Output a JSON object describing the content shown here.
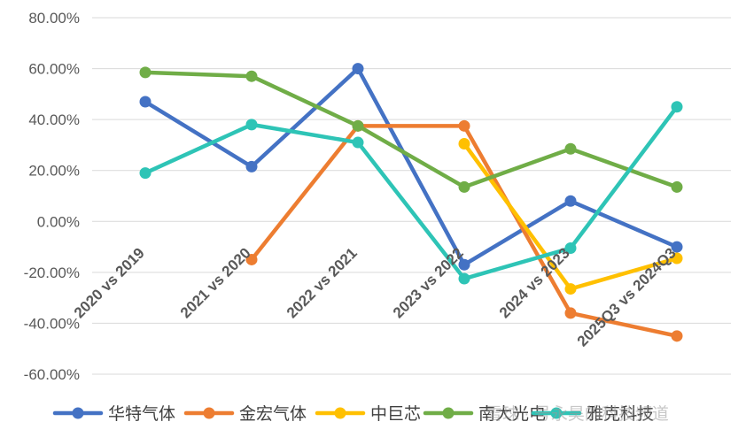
{
  "chart_data": {
    "type": "line",
    "title": "",
    "xlabel": "",
    "ylabel": "",
    "categories": [
      "2020 vs 2019",
      "2021 vs 2020",
      "2022 vs 2021",
      "2023 vs 2022",
      "2024 vs 2023",
      "2025Q3 vs 2024Q3"
    ],
    "y_ticks": [
      "80.00%",
      "60.00%",
      "40.00%",
      "20.00%",
      "0.00%",
      "-20.00%",
      "-40.00%",
      "-60.00%"
    ],
    "ylim": [
      -60,
      80
    ],
    "y_unit": "%",
    "grid": true,
    "legend_position": "bottom",
    "series": [
      {
        "name": "华特气体",
        "color": "#4472C4",
        "values": [
          47,
          21.5,
          60,
          -17,
          8,
          -10
        ]
      },
      {
        "name": "金宏气体",
        "color": "#ED7D31",
        "values": [
          null,
          -15,
          37.5,
          37.5,
          -36,
          -45
        ]
      },
      {
        "name": "中巨芯",
        "color": "#FFC000",
        "values": [
          null,
          null,
          null,
          30.5,
          -26.5,
          -14.5
        ]
      },
      {
        "name": "南大光电",
        "color": "#70AD47",
        "values": [
          58.5,
          57,
          37.5,
          13.5,
          28.5,
          13.5
        ]
      },
      {
        "name": "雅克科技",
        "color": "#2EC4B6",
        "values": [
          19,
          38,
          31,
          -22.5,
          -10.5,
          45
        ]
      }
    ]
  },
  "watermark": {
    "text": "雪球 · 号永昊的科技频道"
  }
}
